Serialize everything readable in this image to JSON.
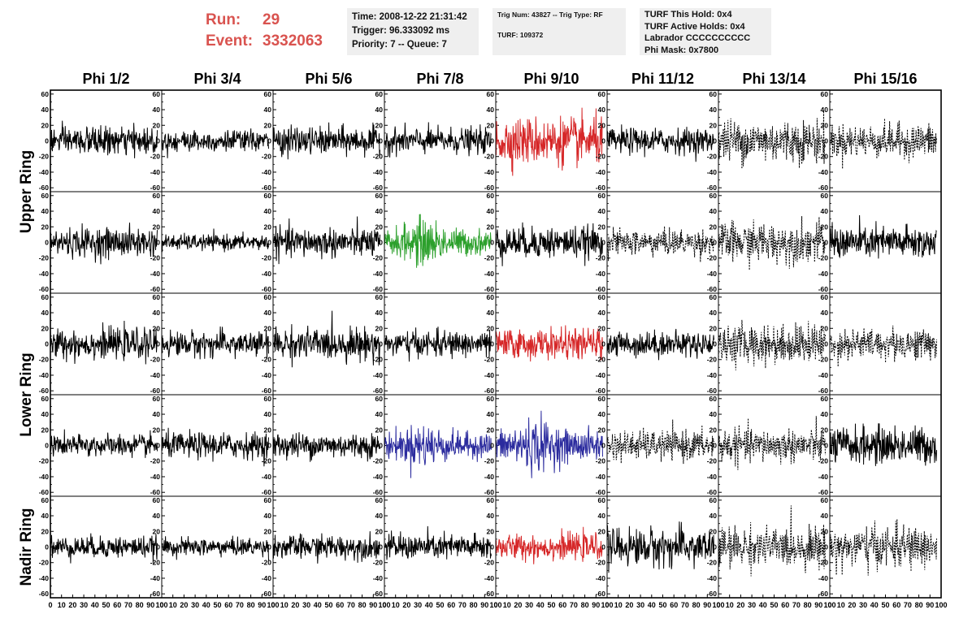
{
  "header": {
    "run_label": "Run:",
    "run_value": "29",
    "event_label": "Event:",
    "event_value": "3332063",
    "time_line": "Time: 2008-12-22 21:31:42",
    "trigger_line": "Trigger: 96.333092 ms",
    "priority_line": "Priority: 7 -- Queue: 7",
    "trig_line": "Trig Num: 43827 -- Trig Type: RF",
    "turf_line": "TURF: 109372",
    "turf_hold_line": "TURF This Hold: 0x4",
    "turf_active_line": "TURF Active Holds: 0x4",
    "labrador_line": "Labrador CCCCCCCCCC",
    "phi_mask_line": "Phi Mask: 0x7800"
  },
  "colors": {
    "header_accent": "#d9534f",
    "black_trace": "#000000",
    "red_trace": "#d62728",
    "green_trace": "#2ca02c",
    "blue_trace": "#2b2b9e"
  },
  "chart_data": {
    "type": "line",
    "columns": [
      "Phi 1/2",
      "Phi 3/4",
      "Phi 5/6",
      "Phi 7/8",
      "Phi 9/10",
      "Phi 11/12",
      "Phi 13/14",
      "Phi 15/16"
    ],
    "rows": [
      "Upper Ring",
      "Upper Ring",
      "Lower Ring",
      "Lower Ring",
      "Nadir Ring"
    ],
    "row_label_groups": [
      {
        "label": "Upper Ring",
        "rows": [
          0,
          1
        ]
      },
      {
        "label": "Lower Ring",
        "rows": [
          2,
          3
        ]
      },
      {
        "label": "Nadir Ring",
        "rows": [
          4
        ]
      }
    ],
    "ylim": [
      -65,
      65
    ],
    "yticks": [
      -60,
      -40,
      -20,
      0,
      20,
      40,
      60
    ],
    "xlim": [
      0,
      100
    ],
    "xticks": [
      0,
      10,
      20,
      30,
      40,
      50,
      60,
      70,
      80,
      90,
      100
    ],
    "x_tick_labels": [
      "0",
      "10",
      "20",
      "30",
      "40",
      "50",
      "60",
      "70",
      "80",
      "90",
      "100"
    ],
    "samples_per_trace": 260,
    "trace_x_range": [
      0,
      96
    ],
    "cells": [
      [
        {
          "c": "black",
          "a": 14,
          "d": false
        },
        {
          "c": "black",
          "a": 11,
          "d": false
        },
        {
          "c": "black",
          "a": 14,
          "d": false
        },
        {
          "c": "black",
          "a": 13,
          "d": false
        },
        {
          "c": "red",
          "a": 24,
          "d": false
        },
        {
          "c": "black",
          "a": 13,
          "d": false
        },
        {
          "c": "black",
          "a": 22,
          "d": true
        },
        {
          "c": "black",
          "a": 17,
          "d": true
        }
      ],
      [
        {
          "c": "black",
          "a": 15,
          "d": false
        },
        {
          "c": "black",
          "a": 8,
          "d": false
        },
        {
          "c": "black",
          "a": 15,
          "d": false
        },
        {
          "c": "green",
          "a": 19,
          "d": false
        },
        {
          "c": "black",
          "a": 16,
          "d": false
        },
        {
          "c": "black",
          "a": 13,
          "d": true
        },
        {
          "c": "black",
          "a": 20,
          "d": true
        },
        {
          "c": "black",
          "a": 17,
          "d": false
        }
      ],
      [
        {
          "c": "black",
          "a": 15,
          "d": false
        },
        {
          "c": "black",
          "a": 13,
          "d": false
        },
        {
          "c": "black",
          "a": 16,
          "d": false
        },
        {
          "c": "black",
          "a": 13,
          "d": false
        },
        {
          "c": "red",
          "a": 15,
          "d": false
        },
        {
          "c": "black",
          "a": 13,
          "d": false
        },
        {
          "c": "black",
          "a": 20,
          "d": true
        },
        {
          "c": "black",
          "a": 16,
          "d": true
        }
      ],
      [
        {
          "c": "black",
          "a": 11,
          "d": false
        },
        {
          "c": "black",
          "a": 13,
          "d": false
        },
        {
          "c": "black",
          "a": 13,
          "d": false
        },
        {
          "c": "blue",
          "a": 18,
          "d": false
        },
        {
          "c": "blue",
          "a": 22,
          "d": false
        },
        {
          "c": "black",
          "a": 15,
          "d": true
        },
        {
          "c": "black",
          "a": 17,
          "d": true
        },
        {
          "c": "black",
          "a": 19,
          "d": false
        }
      ],
      [
        {
          "c": "black",
          "a": 11,
          "d": false
        },
        {
          "c": "black",
          "a": 9,
          "d": false
        },
        {
          "c": "black",
          "a": 12,
          "d": false
        },
        {
          "c": "black",
          "a": 13,
          "d": false
        },
        {
          "c": "red",
          "a": 13,
          "d": false
        },
        {
          "c": "black",
          "a": 19,
          "d": false
        },
        {
          "c": "black",
          "a": 20,
          "d": true
        },
        {
          "c": "black",
          "a": 21,
          "d": true
        }
      ]
    ]
  }
}
